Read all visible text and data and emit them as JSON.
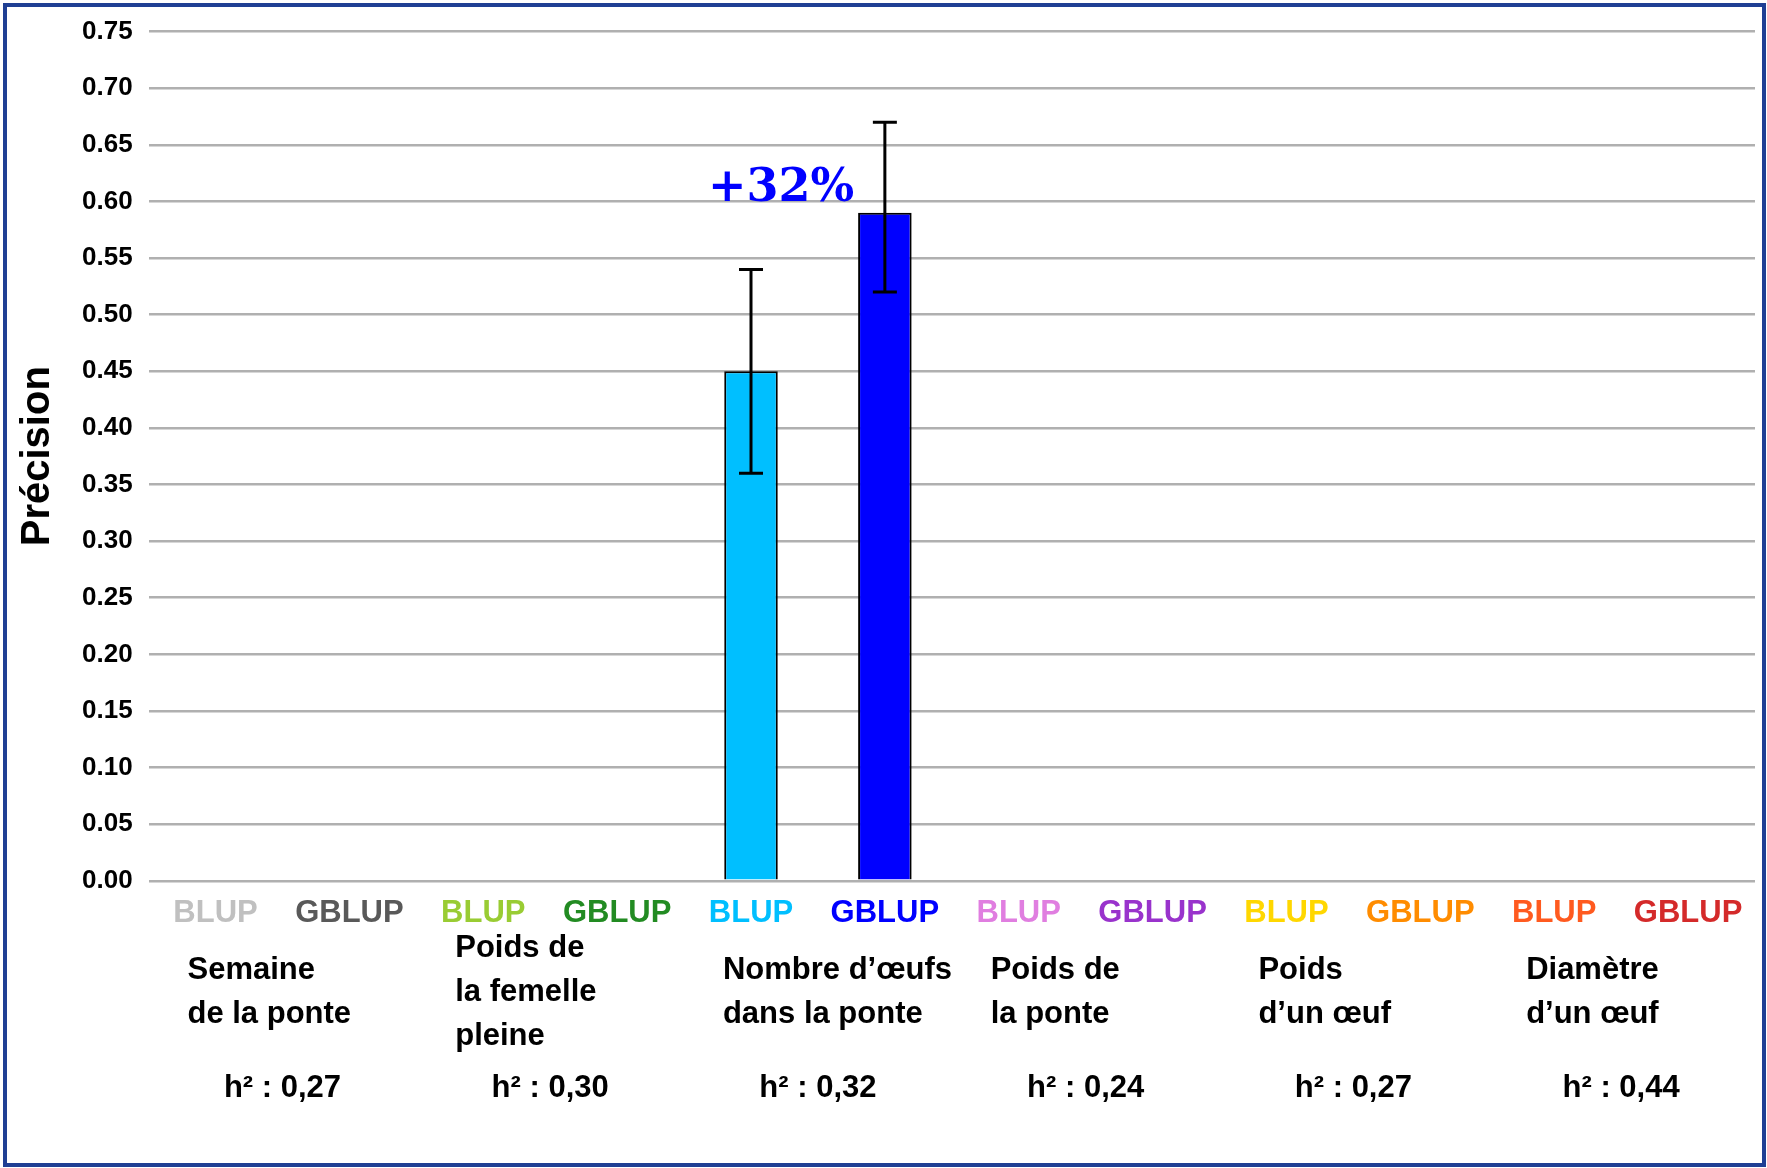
{
  "chart_data": {
    "type": "bar",
    "ylabel": "Précision",
    "categories": [
      "BLUP",
      "GBLUP",
      "BLUP",
      "GBLUP",
      "BLUP",
      "GBLUP",
      "BLUP",
      "GBLUP",
      "BLUP",
      "GBLUP",
      "BLUP",
      "GBLUP"
    ],
    "values": [
      null,
      null,
      null,
      null,
      0.45,
      0.59,
      null,
      null,
      null,
      null,
      null,
      null
    ],
    "errors": [
      null,
      null,
      null,
      null,
      [
        0.36,
        0.54
      ],
      [
        0.52,
        0.67
      ],
      null,
      null,
      null,
      null,
      null,
      null
    ],
    "colors": [
      "#c0c0c0",
      "#595959",
      "#99cc33",
      "#228b22",
      "#00bfff",
      "#0000ff",
      "#e07ee0",
      "#9933cc",
      "#ffd700",
      "#ff8c00",
      "#ff5a1f",
      "#d42a2a"
    ],
    "ylim": [
      0,
      0.75
    ],
    "yticks": [
      {
        "value": 0,
        "label": "0.00"
      },
      {
        "value": 0.05,
        "label": "0.05"
      },
      {
        "value": 0.1,
        "label": "0.10"
      },
      {
        "value": 0.15,
        "label": "0.15"
      },
      {
        "value": 0.2,
        "label": "0.20"
      },
      {
        "value": 0.25,
        "label": "0.25"
      },
      {
        "value": 0.3,
        "label": "0.30"
      },
      {
        "value": 0.35,
        "label": "0.35"
      },
      {
        "value": 0.4,
        "label": "0.40"
      },
      {
        "value": 0.45,
        "label": "0.45"
      },
      {
        "value": 0.5,
        "label": "0.50"
      },
      {
        "value": 0.55,
        "label": "0.55"
      },
      {
        "value": 0.6,
        "label": "0.60"
      },
      {
        "value": 0.65,
        "label": "0.65"
      },
      {
        "value": 0.7,
        "label": "0.70"
      },
      {
        "value": 0.75,
        "label": "0.75"
      }
    ],
    "grid": "y",
    "legend": false,
    "annotations": [
      "Semaine\nde la ponte",
      "Poids de\nla femelle\npleine",
      "Nombre d’œufs\ndans la ponte",
      "Poids de\nla ponte",
      "Poids\nd’un œuf",
      "Diamètre\nd’un œuf",
      "h² : 0,27",
      "h² : 0,30",
      "h² : 0,32",
      "h² : 0,24",
      "h² : 0,27",
      "h² : 0,44",
      "+32%"
    ]
  }
}
